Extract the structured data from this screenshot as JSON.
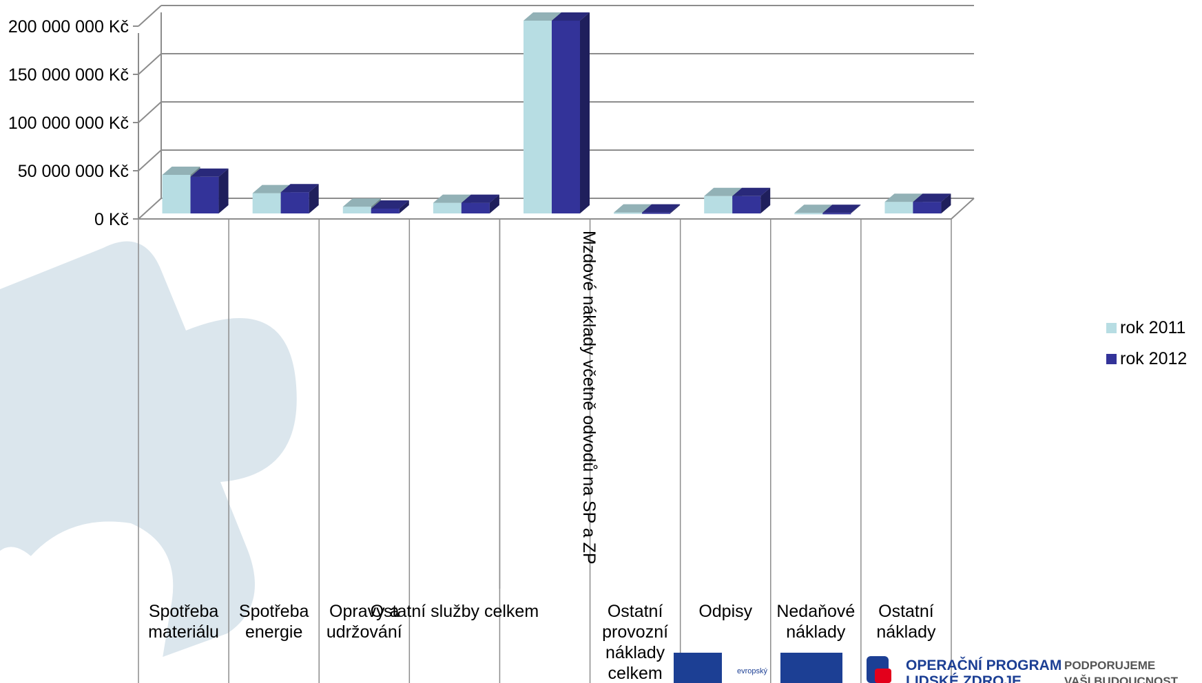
{
  "chart_data": {
    "type": "bar",
    "categories": [
      "Spotřeba materiálu",
      "Spotřeba energie",
      "Opravy a udržování",
      "Ostatní služby celkem",
      "Mzdové náklady včetně odvodů na SP a ZP",
      "Ostatní provozní náklady celkem",
      "Odpisy",
      "Nedaňové náklady",
      "Ostatní náklady"
    ],
    "series": [
      {
        "name": "rok 2011",
        "color": "#b7dde3",
        "values": [
          40000000,
          21000000,
          7000000,
          11000000,
          200000000,
          1000000,
          18000000,
          500000,
          12000000
        ]
      },
      {
        "name": "rok 2012",
        "color": "#333399",
        "values": [
          38000000,
          22000000,
          5000000,
          11000000,
          200000000,
          1000000,
          18000000,
          500000,
          12000000
        ]
      }
    ],
    "y_ticks": [
      "0 Kč",
      "50 000 000 Kč",
      "100 000 000 Kč",
      "150 000 000 Kč",
      "200 000 000 Kč"
    ],
    "y_tick_values": [
      0,
      50000000,
      100000000,
      150000000,
      200000000
    ],
    "ylim": [
      0,
      200000000
    ],
    "grid": true,
    "legend_position": "right",
    "colors": {
      "series2011": "#b7dde3",
      "series2012": "#333399",
      "grid": "#8c8c8c",
      "puzzle": "#dbe6ed"
    }
  },
  "footer": {
    "esf_label": "evropský",
    "op_line1": "OPERAČNÍ PROGRAM",
    "op_line2": "LIDSKÉ ZDROJE",
    "podpor_line1": "PODPORUJEME",
    "podpor_line2": "VAŠI BUDOUCNOST"
  }
}
